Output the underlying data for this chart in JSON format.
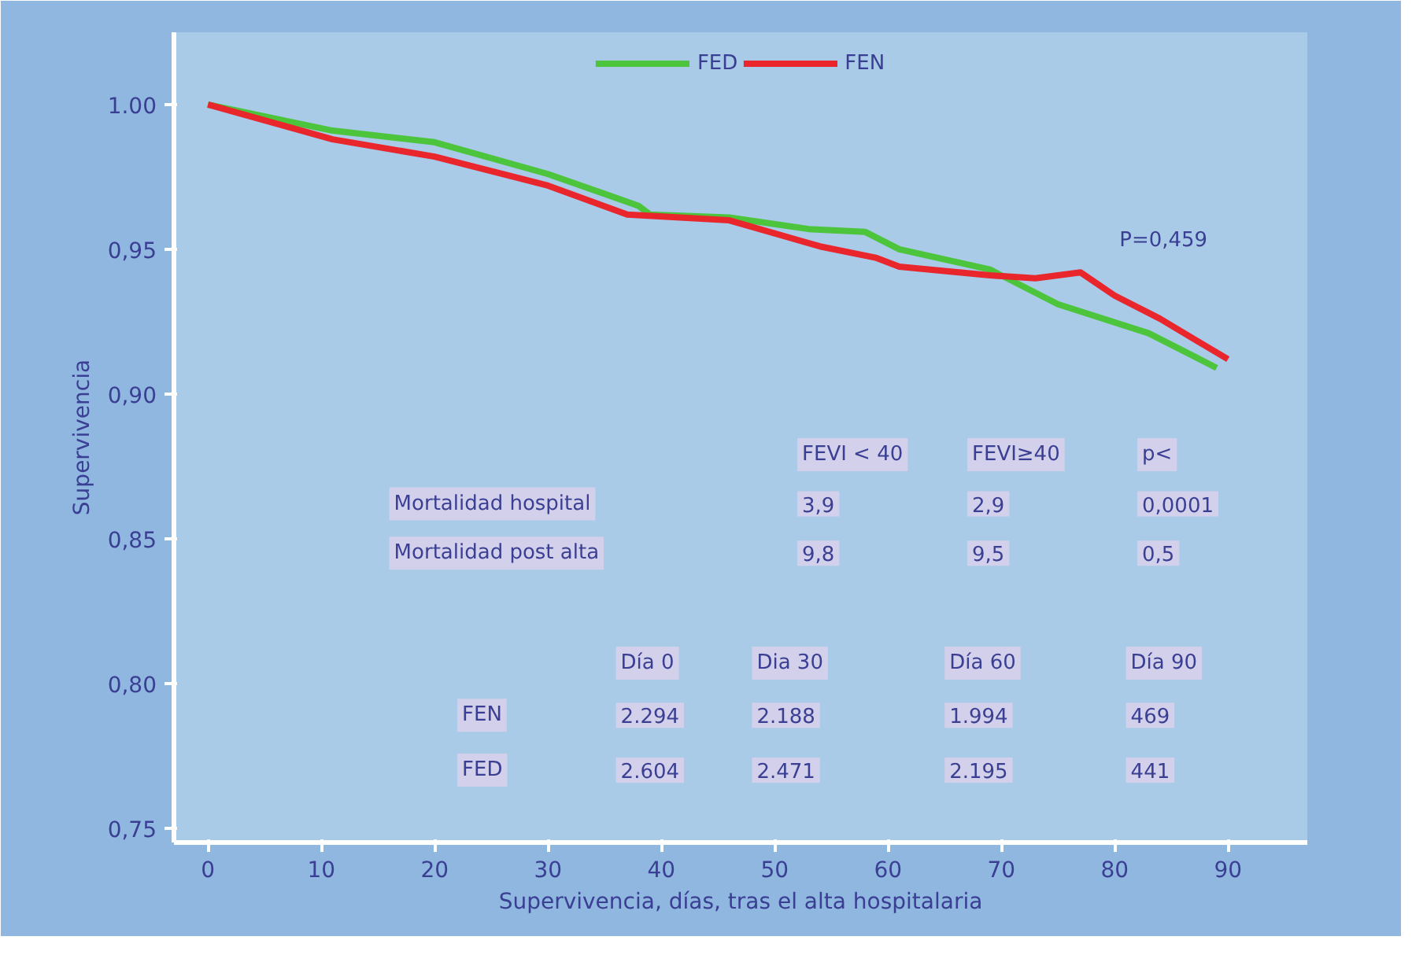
{
  "chart_data": {
    "type": "line",
    "xlabel": "Supervivencia, días, tras el alta hospitalaria",
    "ylabel": "Supervivencia",
    "series": [
      {
        "name": "FED",
        "color": "#4cc43c",
        "x": [
          0,
          11,
          20,
          30,
          38,
          39,
          46,
          53,
          58,
          61,
          69,
          75,
          83,
          89
        ],
        "values": [
          1.0,
          0.991,
          0.987,
          0.976,
          0.965,
          0.962,
          0.961,
          0.957,
          0.956,
          0.95,
          0.943,
          0.931,
          0.921,
          0.909
        ]
      },
      {
        "name": "FEN",
        "color": "#e8262c",
        "x": [
          0,
          11,
          20,
          30,
          37,
          46,
          54,
          59,
          61,
          69,
          73,
          77,
          80,
          84,
          90
        ],
        "values": [
          1.0,
          0.988,
          0.982,
          0.972,
          0.962,
          0.96,
          0.951,
          0.947,
          0.944,
          0.941,
          0.94,
          0.942,
          0.934,
          0.926,
          0.912
        ]
      }
    ],
    "xlim": [
      -3,
      97
    ],
    "xticks": [
      0,
      10,
      20,
      30,
      40,
      50,
      60,
      70,
      80,
      90
    ],
    "ylim": [
      0.745,
      1.025
    ],
    "yticks": [
      {
        "value": 0.75,
        "label": "0,75"
      },
      {
        "value": 0.8,
        "label": "0,80"
      },
      {
        "value": 0.85,
        "label": "0,85"
      },
      {
        "value": 0.9,
        "label": "0,90"
      },
      {
        "value": 0.95,
        "label": "0,95"
      },
      {
        "value": 1.0,
        "label": "1.00"
      }
    ],
    "grid": false,
    "legend": "top",
    "marker": "none",
    "line_style": "solid",
    "annotations": [
      "P=0,459",
      "FEVI < 40",
      "FEVI≥40",
      "p<",
      "Mortalidad hospital",
      "3,9",
      "2,9",
      "0,0001",
      "Mortalidad post alta",
      "9,8",
      "9,5",
      "0,5",
      "Día 0",
      "Dia 30",
      "Día 60",
      "Día 90",
      "FEN",
      "2.294",
      "2.188",
      "1.994",
      "469",
      "FED",
      "2.604",
      "2.471",
      "2.195",
      "441"
    ]
  }
}
